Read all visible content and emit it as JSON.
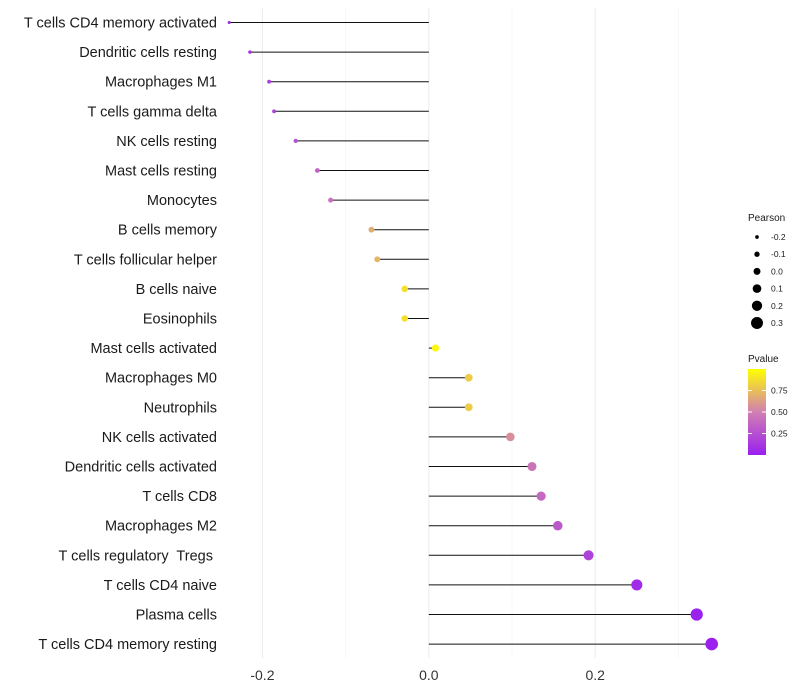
{
  "chart_data": {
    "type": "lollipop",
    "title": "",
    "xlabel": "",
    "ylabel": "",
    "xlim": [
      -0.245,
      0.35
    ],
    "x_ticks": [
      {
        "value": -0.2,
        "label": "-0.2"
      },
      {
        "value": 0.0,
        "label": "0.0"
      },
      {
        "value": 0.2,
        "label": "0.2"
      }
    ],
    "grid": true,
    "categories": [
      {
        "name": "T cells CD4 memory activated",
        "pearson": -0.24,
        "pvalue": 0.03
      },
      {
        "name": "Dendritic cells resting",
        "pearson": -0.215,
        "pvalue": 0.08
      },
      {
        "name": "Macrophages M1",
        "pearson": -0.192,
        "pvalue": 0.15
      },
      {
        "name": "T cells gamma delta",
        "pearson": -0.186,
        "pvalue": 0.18
      },
      {
        "name": "NK cells resting",
        "pearson": -0.16,
        "pvalue": 0.26
      },
      {
        "name": "Mast cells resting",
        "pearson": -0.134,
        "pvalue": 0.35
      },
      {
        "name": "Monocytes",
        "pearson": -0.118,
        "pvalue": 0.42
      },
      {
        "name": "B cells memory",
        "pearson": -0.069,
        "pvalue": 0.68
      },
      {
        "name": "T cells follicular helper",
        "pearson": -0.062,
        "pvalue": 0.72
      },
      {
        "name": "B cells naive",
        "pearson": -0.029,
        "pvalue": 0.88
      },
      {
        "name": "Eosinophils",
        "pearson": -0.029,
        "pvalue": 0.88
      },
      {
        "name": "Mast cells activated",
        "pearson": 0.008,
        "pvalue": 0.97
      },
      {
        "name": "Macrophages M0",
        "pearson": 0.048,
        "pvalue": 0.8
      },
      {
        "name": "Neutrophils",
        "pearson": 0.048,
        "pvalue": 0.8
      },
      {
        "name": "NK cells activated",
        "pearson": 0.098,
        "pvalue": 0.56
      },
      {
        "name": "Dendritic cells activated",
        "pearson": 0.124,
        "pvalue": 0.44
      },
      {
        "name": "T cells CD8",
        "pearson": 0.135,
        "pvalue": 0.38
      },
      {
        "name": "Macrophages M2",
        "pearson": 0.155,
        "pvalue": 0.3
      },
      {
        "name": "T cells regulatory  Tregs ",
        "pearson": 0.192,
        "pvalue": 0.18
      },
      {
        "name": "T cells CD4 naive",
        "pearson": 0.25,
        "pvalue": 0.06
      },
      {
        "name": "Plasma cells",
        "pearson": 0.322,
        "pvalue": 0.01
      },
      {
        "name": "T cells CD4 memory resting",
        "pearson": 0.34,
        "pvalue": 0.005
      }
    ],
    "legend_size": {
      "title": "Pearson",
      "entries": [
        {
          "label": "-0.2",
          "value": -0.2
        },
        {
          "label": "-0.1",
          "value": -0.1
        },
        {
          "label": "0.0",
          "value": 0.0
        },
        {
          "label": "0.1",
          "value": 0.1
        },
        {
          "label": "0.2",
          "value": 0.2
        },
        {
          "label": "0.3",
          "value": 0.3
        }
      ]
    },
    "legend_color": {
      "title": "Pvalue",
      "ticks": [
        {
          "label": "0.75",
          "value": 0.75
        },
        {
          "label": "0.50",
          "value": 0.5
        },
        {
          "label": "0.25",
          "value": 0.25
        }
      ],
      "range": [
        0.0,
        1.0
      ],
      "low_color": "#9a1ff0",
      "mid_color": "#d17fb2",
      "high_color": "#ffff00"
    },
    "legend_position": "right"
  }
}
